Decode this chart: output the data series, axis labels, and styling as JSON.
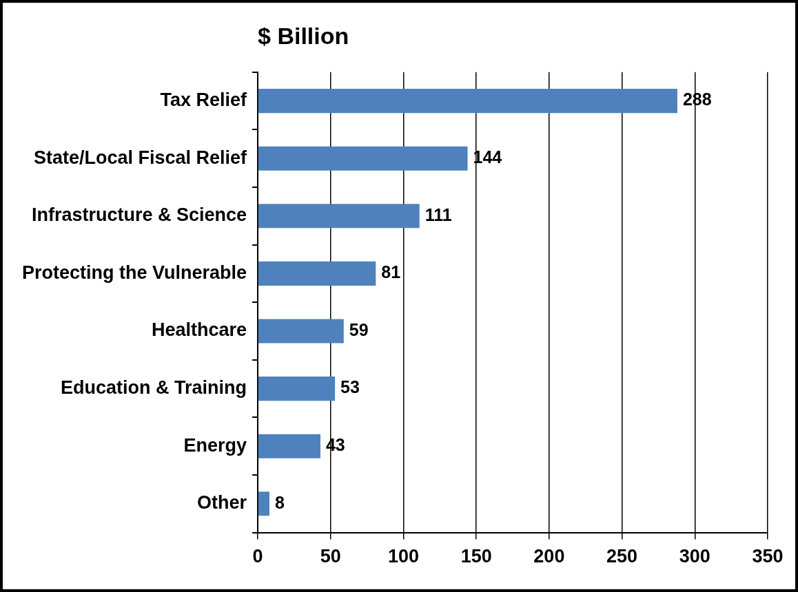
{
  "chart_data": {
    "type": "bar",
    "orientation": "horizontal",
    "title": "$ Billion",
    "categories": [
      "Tax Relief",
      "State/Local Fiscal Relief",
      "Infrastructure & Science",
      "Protecting the Vulnerable",
      "Healthcare",
      "Education & Training",
      "Energy",
      "Other"
    ],
    "values": [
      288,
      144,
      111,
      81,
      59,
      53,
      43,
      8
    ],
    "color": "#4f81bd",
    "xlim": [
      0,
      350
    ],
    "xticks": [
      0,
      50,
      100,
      150,
      200,
      250,
      300,
      350
    ],
    "grid": "x",
    "data_labels": true
  }
}
